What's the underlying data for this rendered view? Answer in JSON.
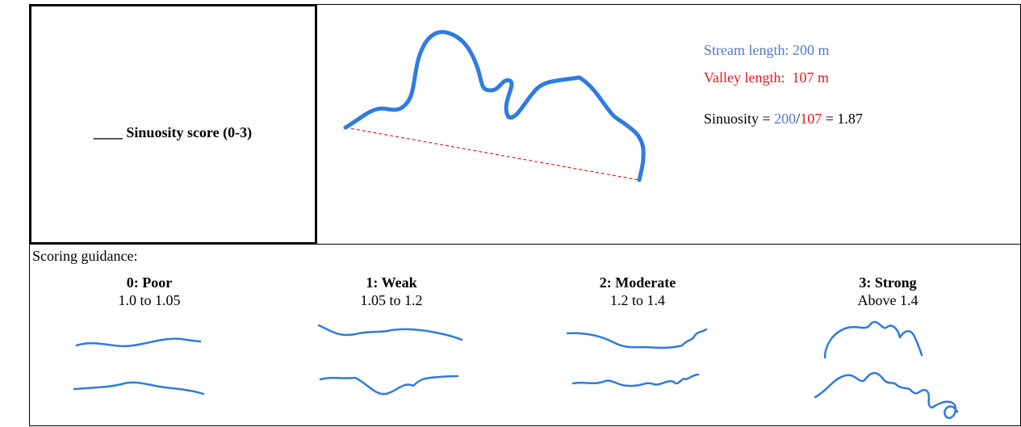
{
  "score_box": {
    "label": "____ Sinuosity score (0-3)"
  },
  "example": {
    "stream_length": "Stream length: 200 m",
    "valley_length": "Valley length:  107 m",
    "formula": {
      "prefix": "Sinuosity = ",
      "stream": "200",
      "slash": "/",
      "valley": "107",
      "result": " = 1.87"
    }
  },
  "guidance": {
    "title": "Scoring guidance:",
    "levels": [
      {
        "label": "0: Poor",
        "range": "1.0 to 1.05"
      },
      {
        "label": "1: Weak",
        "range": "1.05 to 1.2"
      },
      {
        "label": "2: Moderate",
        "range": "1.2 to 1.4"
      },
      {
        "label": "3: Strong",
        "range": "Above 1.4"
      }
    ]
  }
}
